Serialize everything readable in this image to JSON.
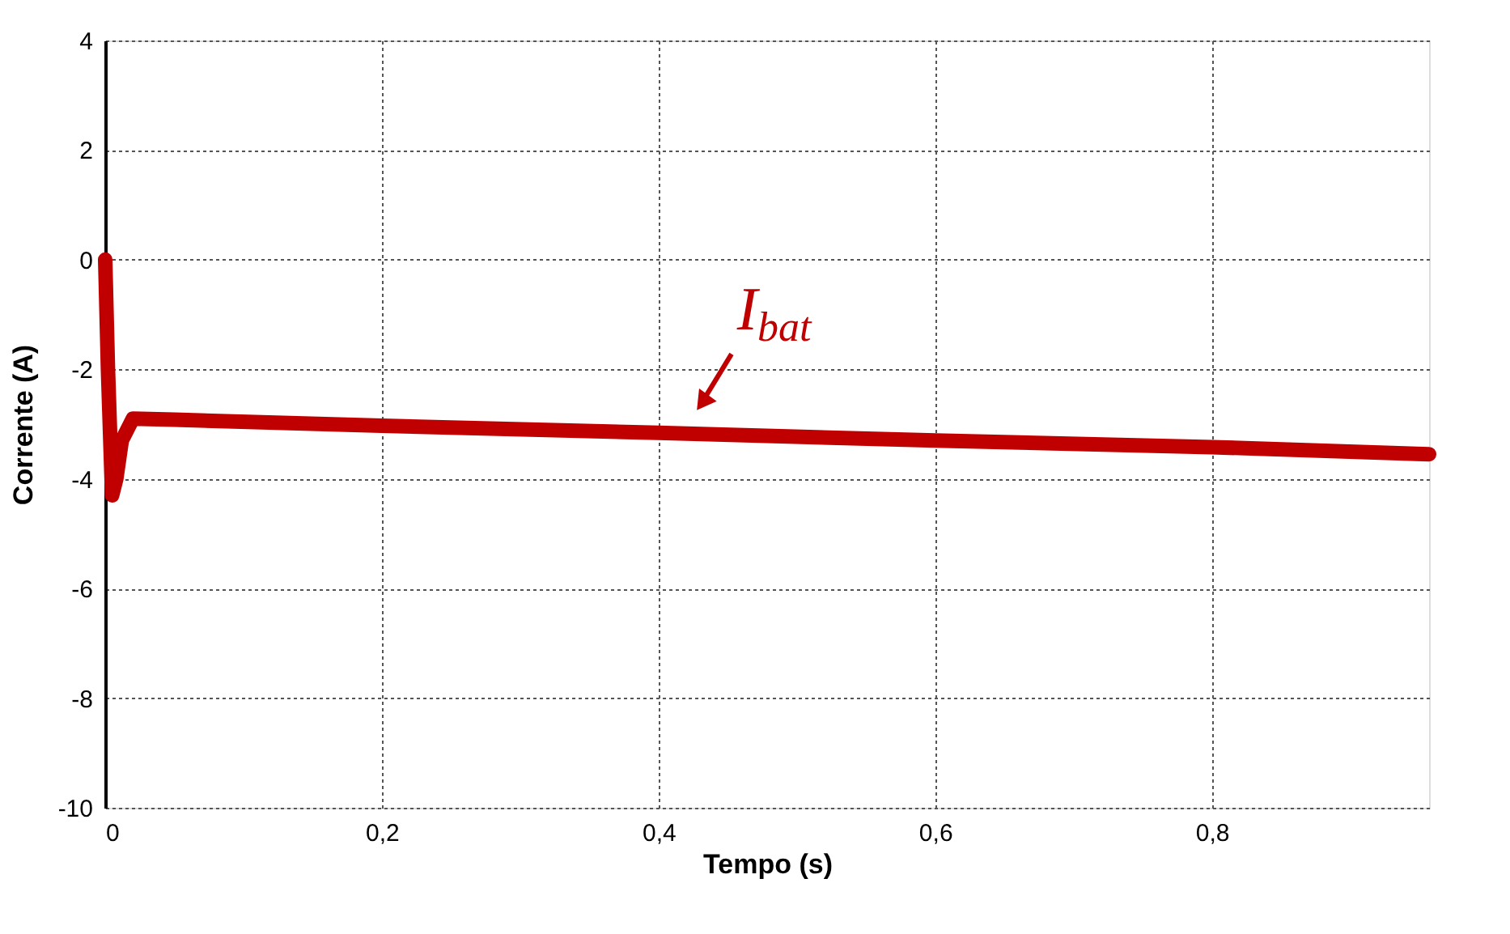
{
  "chart_data": {
    "type": "line",
    "xlabel": "Tempo (s)",
    "ylabel": "Corrente (A)",
    "x": [
      0,
      0.002,
      0.005,
      0.008,
      0.012,
      0.02,
      0.05,
      0.2,
      0.4,
      0.6,
      0.8,
      0.957
    ],
    "series": [
      {
        "color": "#c00000",
        "values": [
          0,
          -2,
          -4.3,
          -4.0,
          -3.3,
          -2.9,
          -2.92,
          -3.03,
          -3.16,
          -3.3,
          -3.42,
          -3.55
        ]
      }
    ],
    "xlim": [
      0,
      0.957
    ],
    "ylim": [
      -10,
      4
    ],
    "xticks": [
      0,
      {
        "value": 0.2,
        "label": "0,2"
      },
      {
        "value": 0.4,
        "label": "0,4"
      },
      {
        "value": 0.6,
        "label": "0,6"
      },
      {
        "value": 0.8,
        "label": "0,8"
      }
    ],
    "yticks": [
      -10,
      -8,
      -6,
      -4,
      -2,
      0,
      2,
      4
    ],
    "annotations": [
      {
        "text": "I$_{bat}$",
        "x": 0.42,
        "y": -3.16
      }
    ],
    "grid": true
  }
}
